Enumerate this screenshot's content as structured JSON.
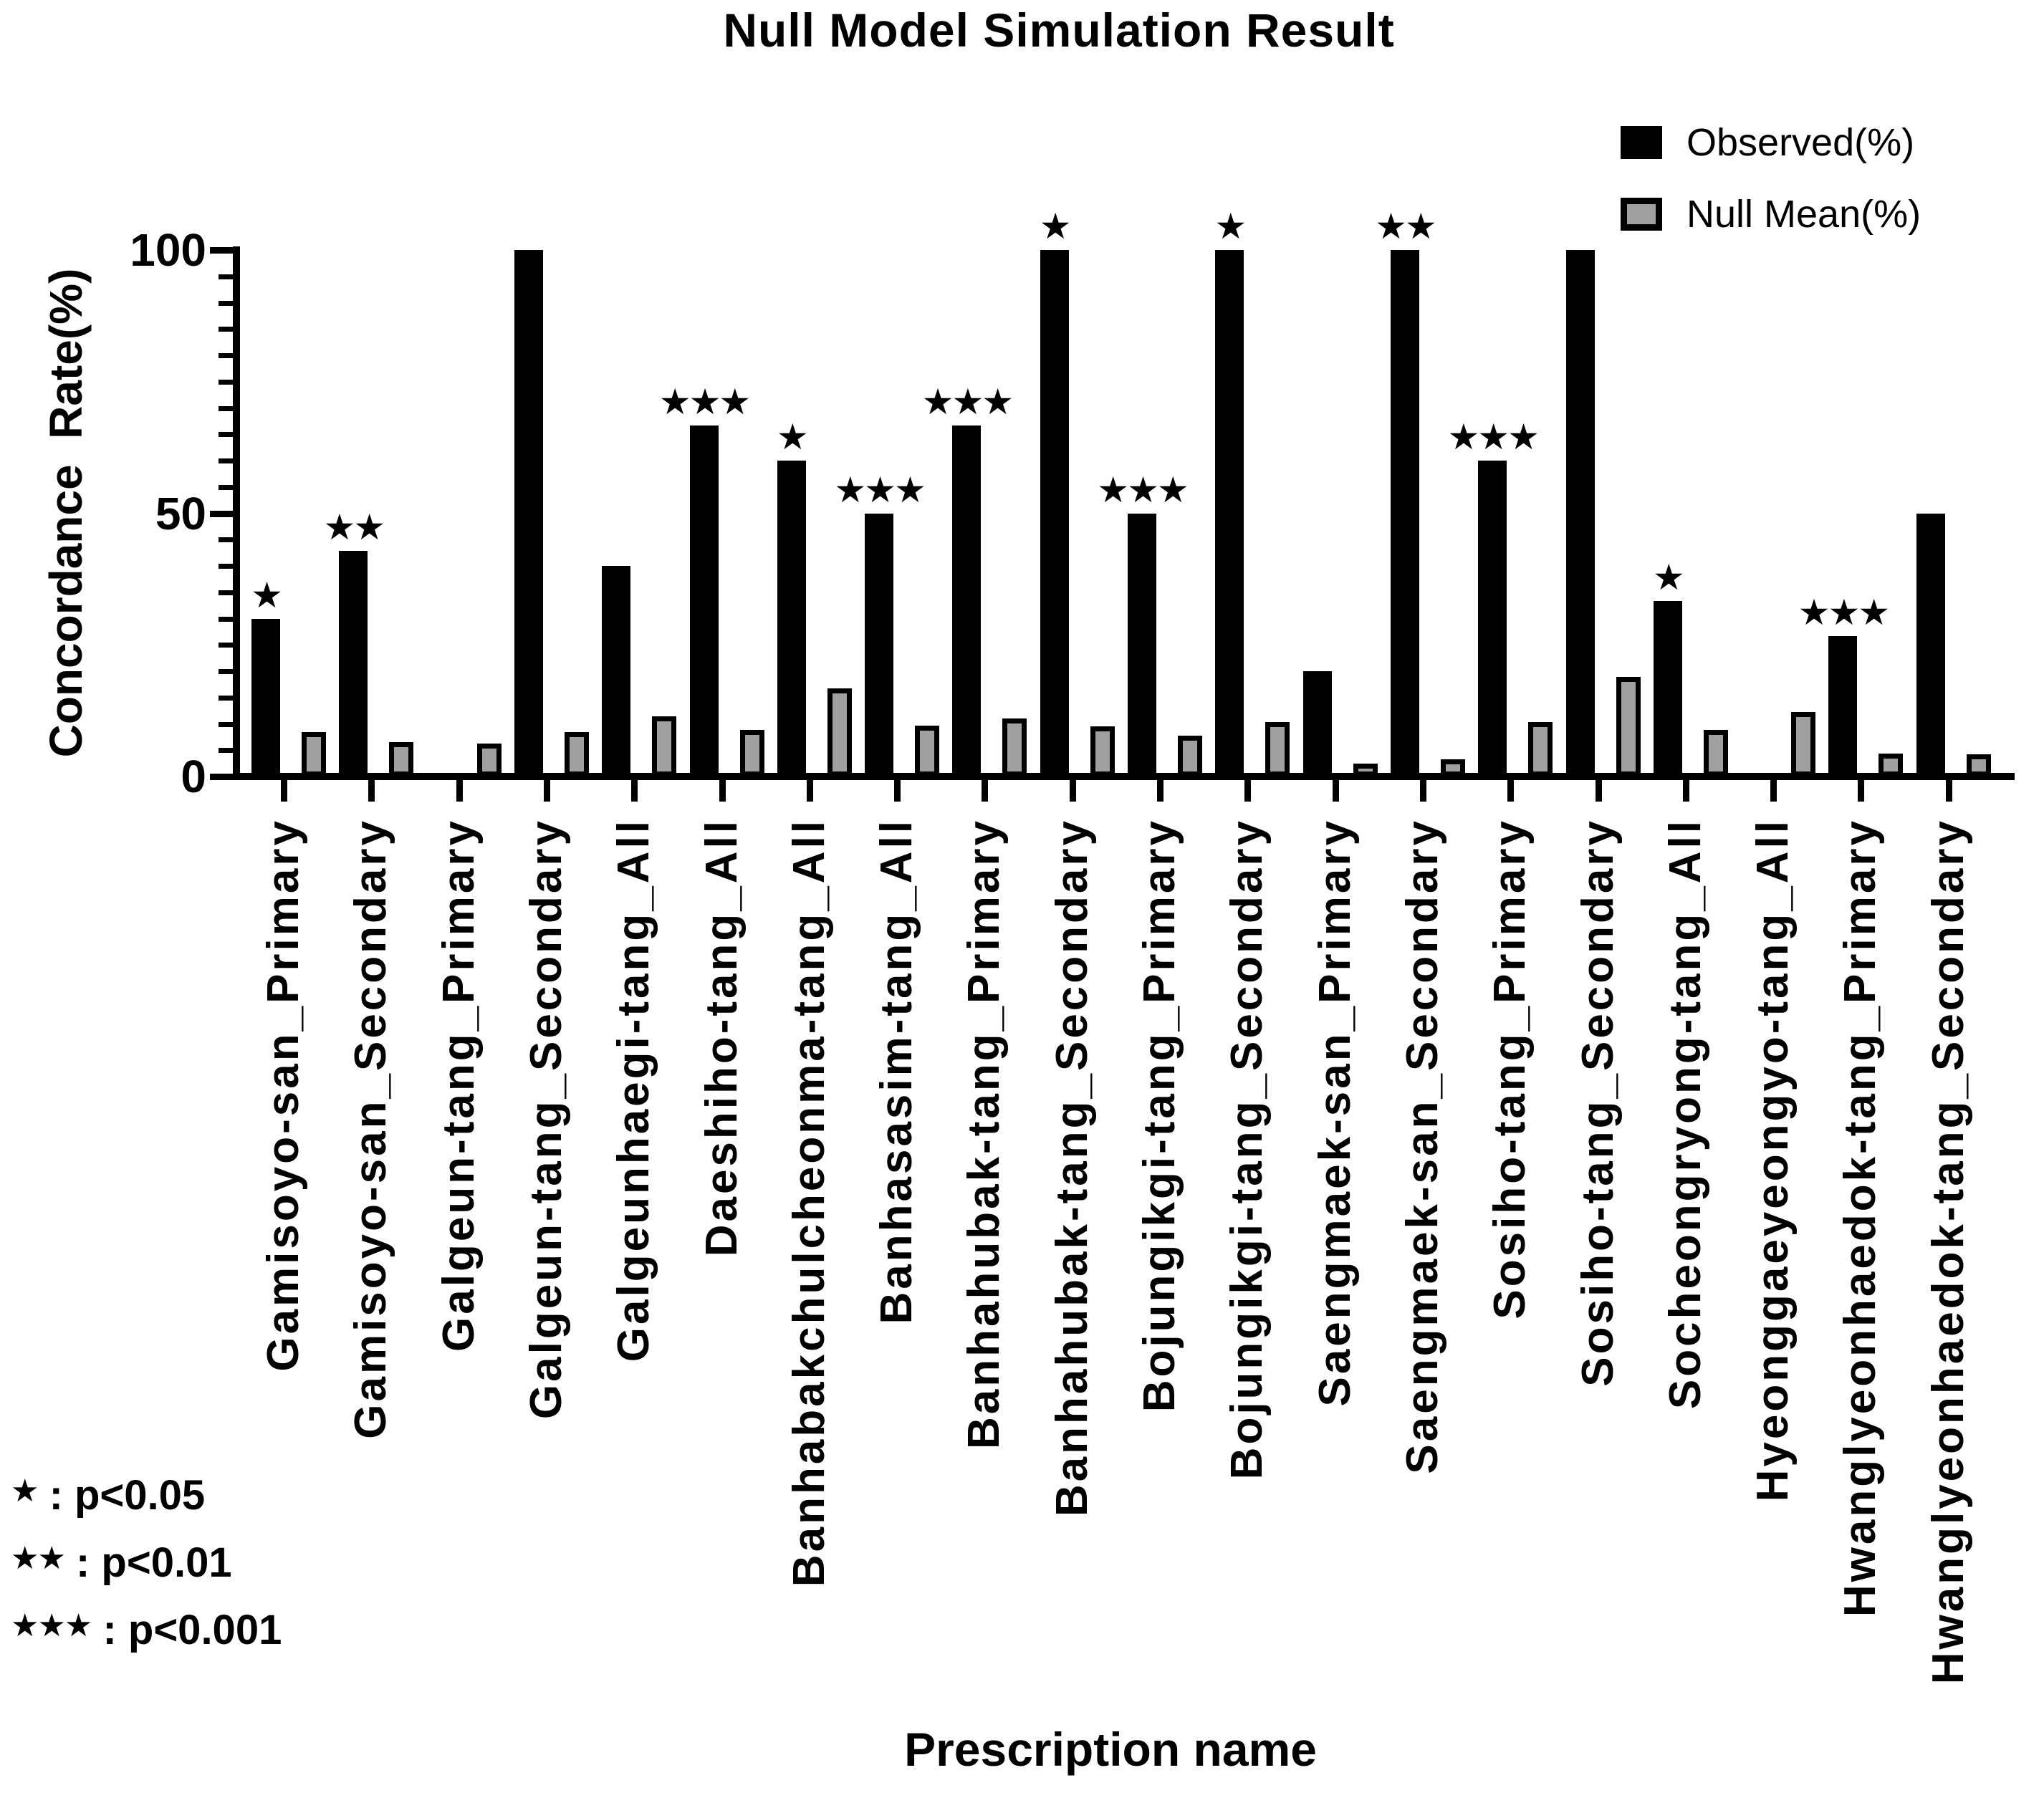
{
  "title": "Null Model Simulation Result",
  "legend": {
    "items": [
      {
        "label": "Observed(%)",
        "color": "#000000"
      },
      {
        "label": "Null Mean(%)",
        "color": "#a0a0a0"
      }
    ]
  },
  "y_axis": {
    "label": "Concordance  Rate(%)",
    "ticks": [
      "100",
      "50",
      "0"
    ]
  },
  "x_axis": {
    "label": "Prescription name"
  },
  "footnote": {
    "lines": [
      "* : p<0.05",
      "** : p<0.01",
      "*** : p<0.001"
    ]
  },
  "chart_data": {
    "type": "bar",
    "title": "Null Model Simulation Result",
    "xlabel": "Prescription name",
    "ylabel": "Concordance Rate(%)",
    "ylim": [
      0,
      100
    ],
    "yticks": [
      0,
      50,
      100
    ],
    "y_minor_tick_step": 5,
    "grid": false,
    "legend_position": "top-right",
    "categories": [
      "Gamisoyo-san_Primary",
      "Gamisoyo-san_Secondary",
      "Galgeun-tang_Primary",
      "Galgeun-tang_Secondary",
      "Galgeunhaegi-tang_All",
      "Daeshiho-tang_All",
      "Banhabakchulcheonma-tang_All",
      "Banhasasim-tang_All",
      "Banhahubak-tang_Primary",
      "Banhahubak-tang_Secondary",
      "Bojungikgi-tang_Primary",
      "Bojungikgi-tang_Secondary",
      "Saengmaek-san_Primary",
      "Saengmaek-san_Secondary",
      "Sosiho-tang_Primary",
      "Sosiho-tang_Secondary",
      "Socheongryong-tang_All",
      "Hyeonggaeyeongyo-tang_All",
      "Hwanglyeonhaedok-tang_Primary",
      "Hwanglyeonhaedok-tang_Secondary"
    ],
    "series": [
      {
        "name": "Observed(%)",
        "color": "#000000",
        "values": [
          30,
          42.9,
          0,
          100,
          40,
          66.7,
          60,
          50,
          66.7,
          100,
          50,
          100,
          20,
          100,
          60,
          100,
          33.3,
          0,
          26.7,
          50
        ]
      },
      {
        "name": "Null Mean(%)",
        "color": "#a0a0a0",
        "values": [
          8.4,
          6.5,
          6.3,
          8.4,
          11.4,
          8.9,
          16.7,
          9.7,
          11,
          9.5,
          7.8,
          10.3,
          2.4,
          3.2,
          10.3,
          18.9,
          8.9,
          12.3,
          4.4,
          4.2
        ]
      }
    ],
    "significance": [
      "*",
      "**",
      "",
      "",
      "",
      "***",
      "*",
      "***",
      "***",
      "*",
      "***",
      "*",
      "",
      "**",
      "***",
      "",
      "*",
      "",
      "***",
      ""
    ]
  }
}
